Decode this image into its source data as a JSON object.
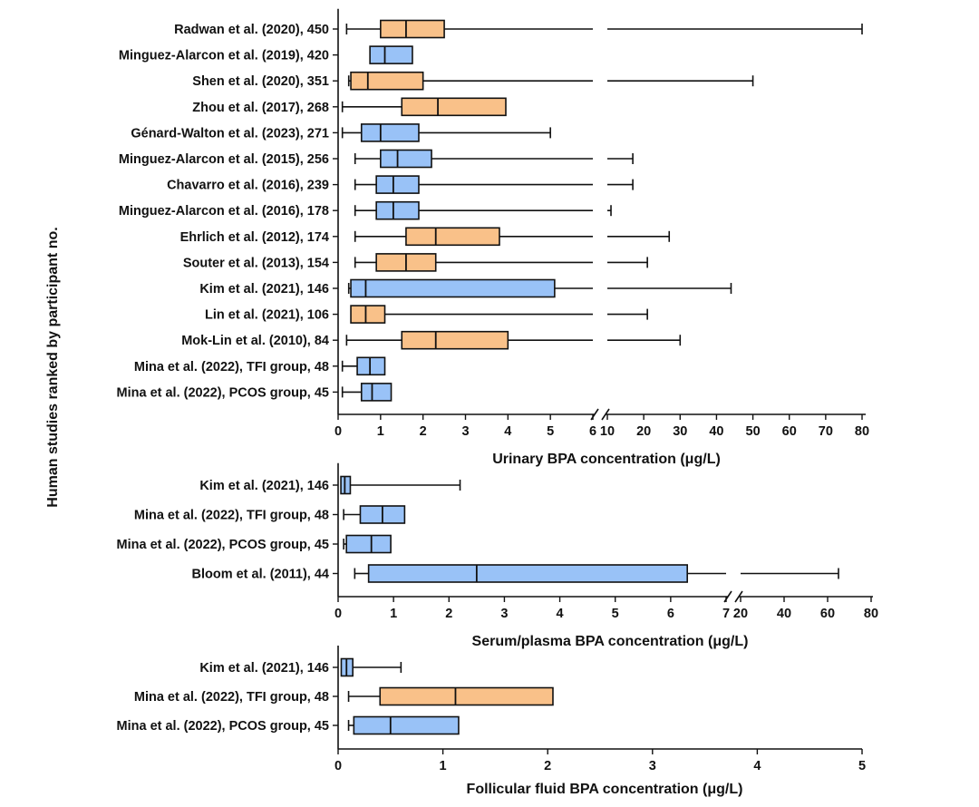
{
  "y_axis_title": "Human studies ranked by participant no.",
  "colors": {
    "blue": "#99c2f7",
    "orange": "#f9c189",
    "stroke": "#111111"
  },
  "chart_data": [
    {
      "type": "boxplot",
      "xlabel": "Urinary BPA concentration (μg/L)",
      "broken_axis": true,
      "xticks_left": [
        "0",
        "1",
        "2",
        "3",
        "4",
        "5",
        "6"
      ],
      "xticks_right": [
        "10",
        "20",
        "30",
        "40",
        "50",
        "60",
        "70",
        "80"
      ],
      "rows": [
        {
          "label": "Radwan et al. (2020), 450",
          "color": "orange",
          "min": 0.2,
          "q1": 1.0,
          "median": 1.6,
          "q3": 2.5,
          "max": 80
        },
        {
          "label": "Minguez-Alarcon et al. (2019), 420",
          "color": "blue",
          "min": null,
          "q1": 0.75,
          "median": 1.1,
          "q3": 1.75,
          "max": null
        },
        {
          "label": "Shen et al. (2020), 351",
          "color": "orange",
          "min": 0.25,
          "q1": 0.3,
          "median": 0.7,
          "q3": 2.0,
          "max": 50
        },
        {
          "label": "Zhou et al. (2017), 268",
          "color": "orange",
          "min": 0.1,
          "q1": 1.5,
          "median": 2.35,
          "q3": 3.95,
          "max": null
        },
        {
          "label": "Génard-Walton et al. (2023), 271",
          "color": "blue",
          "min": 0.1,
          "q1": 0.55,
          "median": 1.0,
          "q3": 1.9,
          "max": 5.0
        },
        {
          "label": "Minguez-Alarcon et al. (2015), 256",
          "color": "blue",
          "min": 0.4,
          "q1": 1.0,
          "median": 1.4,
          "q3": 2.2,
          "max": 17
        },
        {
          "label": "Chavarro et al. (2016), 239",
          "color": "blue",
          "min": 0.4,
          "q1": 0.9,
          "median": 1.3,
          "q3": 1.9,
          "max": 17
        },
        {
          "label": "Minguez-Alarcon et al. (2016), 178",
          "color": "blue",
          "min": 0.4,
          "q1": 0.9,
          "median": 1.3,
          "q3": 1.9,
          "max": 11
        },
        {
          "label": "Ehrlich et al. (2012), 174",
          "color": "orange",
          "min": 0.4,
          "q1": 1.6,
          "median": 2.3,
          "q3": 3.8,
          "max": 27
        },
        {
          "label": "Souter et al. (2013), 154",
          "color": "orange",
          "min": 0.4,
          "q1": 0.9,
          "median": 1.6,
          "q3": 2.3,
          "max": 21
        },
        {
          "label": "Kim et al. (2021), 146",
          "color": "blue",
          "min": 0.25,
          "q1": 0.3,
          "median": 0.65,
          "q3": 5.1,
          "max": 44
        },
        {
          "label": "Lin et al. (2021), 106",
          "color": "orange",
          "min": null,
          "q1": 0.3,
          "median": 0.65,
          "q3": 1.1,
          "max": 21
        },
        {
          "label": "Mok-Lin et al. (2010), 84",
          "color": "orange",
          "min": 0.2,
          "q1": 1.5,
          "median": 2.3,
          "q3": 4.0,
          "max": 30
        },
        {
          "label": "Mina et al. (2022), TFI group, 48",
          "color": "blue",
          "min": 0.1,
          "q1": 0.45,
          "median": 0.75,
          "q3": 1.1,
          "max": null
        },
        {
          "label": "Mina et al. (2022), PCOS group, 45",
          "color": "blue",
          "min": 0.1,
          "q1": 0.55,
          "median": 0.8,
          "q3": 1.25,
          "max": null
        }
      ]
    },
    {
      "type": "boxplot",
      "xlabel": "Serum/plasma BPA concentration (μg/L)",
      "broken_axis": true,
      "xticks_left": [
        "0",
        "1",
        "2",
        "3",
        "4",
        "5",
        "6",
        "7"
      ],
      "xticks_right": [
        "20",
        "40",
        "60",
        "80"
      ],
      "rows": [
        {
          "label": "Kim et al. (2021), 146",
          "color": "blue",
          "min": null,
          "q1": 0.05,
          "median": 0.12,
          "q3": 0.22,
          "max": 2.2
        },
        {
          "label": "Mina et al. (2022), TFI group, 48",
          "color": "blue",
          "min": 0.1,
          "q1": 0.4,
          "median": 0.8,
          "q3": 1.2,
          "max": null
        },
        {
          "label": "Mina et al. (2022), PCOS group, 45",
          "color": "blue",
          "min": 0.1,
          "q1": 0.15,
          "median": 0.6,
          "q3": 0.95,
          "max": null
        },
        {
          "label": "Bloom et al. (2011), 44",
          "color": "blue",
          "min": 0.3,
          "q1": 0.55,
          "median": 2.5,
          "q3": 6.3,
          "max": 65
        }
      ]
    },
    {
      "type": "boxplot",
      "xlabel": "Follicular fluid BPA concentration (μg/L)",
      "broken_axis": false,
      "xticks_left": [
        "0",
        "1",
        "2",
        "3",
        "4",
        "5"
      ],
      "xticks_right": [],
      "rows": [
        {
          "label": "Kim et al. (2021), 146",
          "color": "blue",
          "min": null,
          "q1": 0.03,
          "median": 0.08,
          "q3": 0.14,
          "max": 0.6
        },
        {
          "label": "Mina et al. (2022), TFI group, 48",
          "color": "orange",
          "min": 0.1,
          "q1": 0.4,
          "median": 1.12,
          "q3": 2.05,
          "max": null
        },
        {
          "label": "Mina et al. (2022), PCOS group, 45",
          "color": "blue",
          "min": 0.1,
          "q1": 0.15,
          "median": 0.5,
          "q3": 1.15,
          "max": null
        }
      ]
    }
  ]
}
